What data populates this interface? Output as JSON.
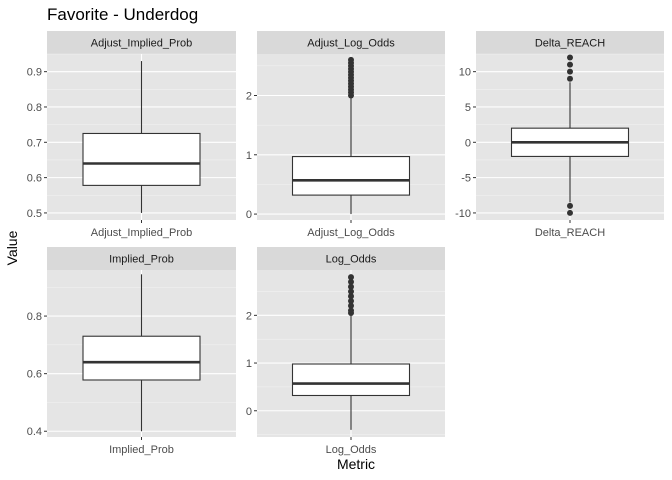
{
  "chart_data": {
    "type": "box",
    "title": "Favorite - Underdog",
    "xlabel": "Metric",
    "ylabel": "Value",
    "layout": "facet_wrap",
    "colors": {
      "panel_bg": "#e5e5e5",
      "strip_bg": "#d9d9d9",
      "grid_major": "#ffffff",
      "box_fill": "#ffffff",
      "box_line": "#333333",
      "outlier": "#333333"
    },
    "panels": [
      {
        "strip": "Adjust_Implied_Prob",
        "category": "Adjust_Implied_Prob",
        "ylim": [
          0.48,
          0.95
        ],
        "yticks": [
          0.5,
          0.6,
          0.7,
          0.8,
          0.9
        ],
        "ytick_labels": [
          "0.5",
          "0.6",
          "0.7",
          "0.8",
          "0.9"
        ],
        "whisker_low": 0.5,
        "q1": 0.578,
        "median": 0.64,
        "q3": 0.725,
        "whisker_high": 0.93,
        "outliers": []
      },
      {
        "strip": "Adjust_Log_Odds",
        "category": "Adjust_Log_Odds",
        "ylim": [
          -0.1,
          2.7
        ],
        "yticks": [
          0,
          1,
          2
        ],
        "ytick_labels": [
          "0",
          "1",
          "2"
        ],
        "whisker_low": 0.0,
        "q1": 0.32,
        "median": 0.57,
        "q3": 0.97,
        "whisker_high": 1.98,
        "outliers": [
          2.0,
          2.05,
          2.1,
          2.15,
          2.2,
          2.25,
          2.3,
          2.35,
          2.4,
          2.45,
          2.5,
          2.55,
          2.6
        ]
      },
      {
        "strip": "Delta_REACH",
        "category": "Delta_REACH",
        "ylim": [
          -11,
          12.5
        ],
        "yticks": [
          -10,
          -5,
          0,
          5,
          10
        ],
        "ytick_labels": [
          "-10",
          "-5",
          "0",
          "5",
          "10"
        ],
        "whisker_low": -8.5,
        "q1": -2,
        "median": 0,
        "q3": 2,
        "whisker_high": 8.5,
        "outliers": [
          -10,
          -9,
          9,
          10,
          11,
          12
        ]
      },
      {
        "strip": "Implied_Prob",
        "category": "Implied_Prob",
        "ylim": [
          0.38,
          0.96
        ],
        "yticks": [
          0.4,
          0.6,
          0.8
        ],
        "ytick_labels": [
          "0.4",
          "0.6",
          "0.8"
        ],
        "whisker_low": 0.4,
        "q1": 0.578,
        "median": 0.64,
        "q3": 0.73,
        "whisker_high": 0.945,
        "outliers": []
      },
      {
        "strip": "Log_Odds",
        "category": "Log_Odds",
        "ylim": [
          -0.55,
          2.95
        ],
        "yticks": [
          0,
          1,
          2
        ],
        "ytick_labels": [
          "0",
          "1",
          "2"
        ],
        "whisker_low": -0.4,
        "q1": 0.32,
        "median": 0.57,
        "q3": 0.98,
        "whisker_high": 2.0,
        "outliers": [
          2.05,
          2.1,
          2.2,
          2.3,
          2.4,
          2.5,
          2.6,
          2.7,
          2.8
        ]
      }
    ]
  }
}
